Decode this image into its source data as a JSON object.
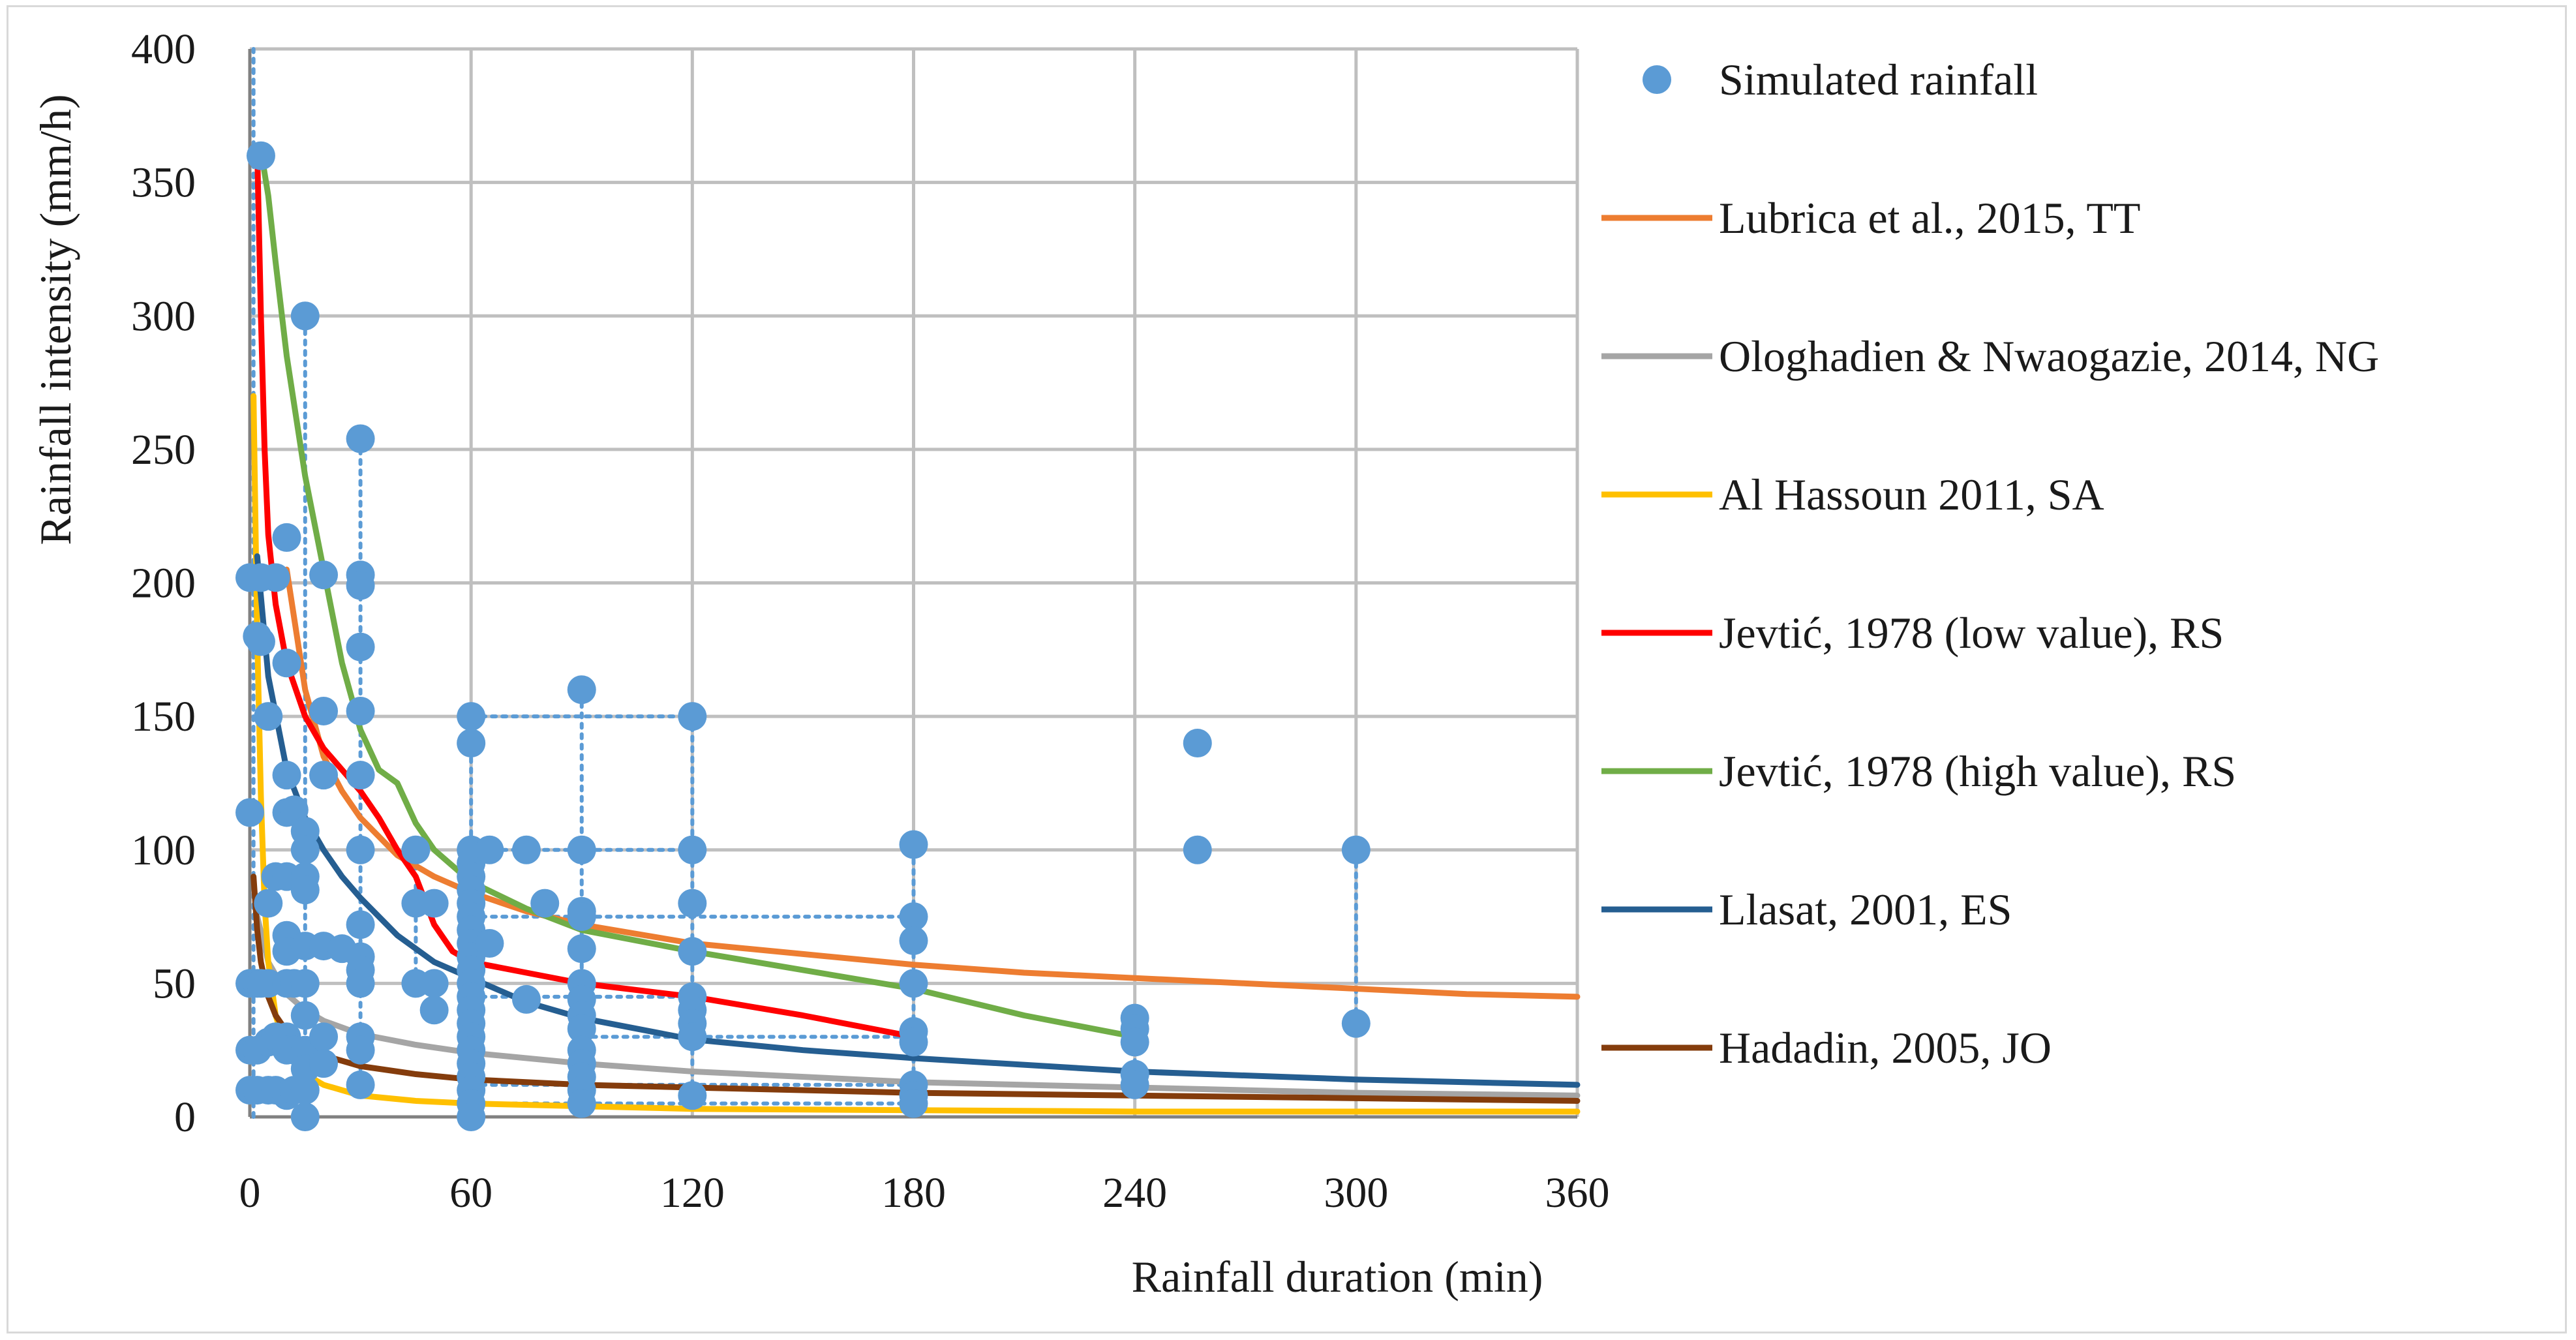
{
  "chart_data": {
    "type": "scatter",
    "title": "",
    "xlabel": "Rainfall duration (min)",
    "ylabel": "Rainfall intensity (mm/h)",
    "xlim": [
      0,
      360
    ],
    "ylim": [
      0,
      400
    ],
    "xticks": [
      0,
      60,
      120,
      180,
      240,
      300,
      360
    ],
    "yticks": [
      0,
      50,
      100,
      150,
      200,
      250,
      300,
      350,
      400
    ],
    "grid": true,
    "legend_position": "right",
    "colors": {
      "simulated": "#5b9bd5",
      "lubrica": "#ed7d31",
      "ologhadien": "#a5a5a5",
      "alhassoun": "#ffc000",
      "jevtic_low": "#ff0000",
      "jevtic_high": "#70ad47",
      "llasat": "#255e91",
      "hadadin": "#843c0c",
      "grid": "#bfbfbf",
      "axis": "#808080"
    },
    "scatter_series": {
      "name": "Simulated rainfall",
      "points": [
        [
          0,
          114
        ],
        [
          0,
          202
        ],
        [
          0,
          50
        ],
        [
          0,
          25
        ],
        [
          0,
          10
        ],
        [
          2,
          180
        ],
        [
          2,
          50
        ],
        [
          2,
          25
        ],
        [
          2,
          10
        ],
        [
          3,
          360
        ],
        [
          3,
          178
        ],
        [
          3,
          202
        ],
        [
          3,
          50
        ],
        [
          5,
          150
        ],
        [
          5,
          80
        ],
        [
          5,
          50
        ],
        [
          5,
          28
        ],
        [
          5,
          10
        ],
        [
          7,
          202
        ],
        [
          7,
          90
        ],
        [
          7,
          30
        ],
        [
          7,
          10
        ],
        [
          10,
          217
        ],
        [
          10,
          170
        ],
        [
          10,
          128
        ],
        [
          10,
          114
        ],
        [
          10,
          90
        ],
        [
          10,
          68
        ],
        [
          10,
          62
        ],
        [
          10,
          50
        ],
        [
          10,
          30
        ],
        [
          10,
          25
        ],
        [
          10,
          8
        ],
        [
          12,
          115
        ],
        [
          12,
          50
        ],
        [
          12,
          25
        ],
        [
          12,
          10
        ],
        [
          15,
          300
        ],
        [
          15,
          107
        ],
        [
          15,
          100
        ],
        [
          15,
          90
        ],
        [
          15,
          85
        ],
        [
          15,
          64
        ],
        [
          15,
          50
        ],
        [
          15,
          38
        ],
        [
          15,
          25
        ],
        [
          15,
          18
        ],
        [
          15,
          10
        ],
        [
          15,
          0
        ],
        [
          20,
          203
        ],
        [
          20,
          152
        ],
        [
          20,
          128
        ],
        [
          20,
          64
        ],
        [
          20,
          30
        ],
        [
          20,
          20
        ],
        [
          25,
          63
        ],
        [
          30,
          254
        ],
        [
          30,
          203
        ],
        [
          30,
          199
        ],
        [
          30,
          176
        ],
        [
          30,
          152
        ],
        [
          30,
          128
        ],
        [
          30,
          100
        ],
        [
          30,
          72
        ],
        [
          30,
          60
        ],
        [
          30,
          55
        ],
        [
          30,
          50
        ],
        [
          30,
          30
        ],
        [
          30,
          25
        ],
        [
          30,
          12
        ],
        [
          45,
          100
        ],
        [
          45,
          80
        ],
        [
          45,
          50
        ],
        [
          50,
          80
        ],
        [
          50,
          50
        ],
        [
          50,
          40
        ],
        [
          60,
          150
        ],
        [
          60,
          140
        ],
        [
          60,
          100
        ],
        [
          60,
          95
        ],
        [
          60,
          90
        ],
        [
          60,
          85
        ],
        [
          60,
          80
        ],
        [
          60,
          75
        ],
        [
          60,
          70
        ],
        [
          60,
          65
        ],
        [
          60,
          60
        ],
        [
          60,
          55
        ],
        [
          60,
          50
        ],
        [
          60,
          45
        ],
        [
          60,
          40
        ],
        [
          60,
          35
        ],
        [
          60,
          30
        ],
        [
          60,
          25
        ],
        [
          60,
          20
        ],
        [
          60,
          15
        ],
        [
          60,
          10
        ],
        [
          60,
          5
        ],
        [
          60,
          0
        ],
        [
          65,
          100
        ],
        [
          65,
          65
        ],
        [
          75,
          100
        ],
        [
          75,
          44
        ],
        [
          80,
          80
        ],
        [
          90,
          160
        ],
        [
          90,
          100
        ],
        [
          90,
          77
        ],
        [
          90,
          75
        ],
        [
          90,
          63
        ],
        [
          90,
          50
        ],
        [
          90,
          44
        ],
        [
          90,
          38
        ],
        [
          90,
          33
        ],
        [
          90,
          25
        ],
        [
          90,
          20
        ],
        [
          90,
          15
        ],
        [
          90,
          10
        ],
        [
          90,
          5
        ],
        [
          120,
          150
        ],
        [
          120,
          100
        ],
        [
          120,
          80
        ],
        [
          120,
          62
        ],
        [
          120,
          45
        ],
        [
          120,
          40
        ],
        [
          120,
          35
        ],
        [
          120,
          30
        ],
        [
          120,
          8
        ],
        [
          180,
          102
        ],
        [
          180,
          75
        ],
        [
          180,
          66
        ],
        [
          180,
          50
        ],
        [
          180,
          32
        ],
        [
          180,
          28
        ],
        [
          180,
          12
        ],
        [
          180,
          8
        ],
        [
          180,
          5
        ],
        [
          240,
          37
        ],
        [
          240,
          33
        ],
        [
          240,
          28
        ],
        [
          240,
          16
        ],
        [
          240,
          12
        ],
        [
          257,
          140
        ],
        [
          257,
          100
        ],
        [
          300,
          100
        ],
        [
          300,
          35
        ]
      ],
      "dotted_links": {
        "vertical": [
          [
            [
              1,
              0
            ],
            [
              1,
              400
            ]
          ],
          [
            [
              15,
              0
            ],
            [
              15,
              300
            ]
          ],
          [
            [
              30,
              10
            ],
            [
              30,
              254
            ]
          ],
          [
            [
              45,
              50
            ],
            [
              45,
              100
            ]
          ],
          [
            [
              60,
              0
            ],
            [
              60,
              150
            ]
          ],
          [
            [
              90,
              5
            ],
            [
              90,
              160
            ]
          ],
          [
            [
              120,
              8
            ],
            [
              120,
              150
            ]
          ],
          [
            [
              180,
              5
            ],
            [
              180,
              102
            ]
          ],
          [
            [
              240,
              12
            ],
            [
              240,
              37
            ]
          ],
          [
            [
              300,
              35
            ],
            [
              300,
              100
            ]
          ]
        ],
        "horizontal": [
          [
            [
              60,
              150
            ],
            [
              120,
              150
            ]
          ],
          [
            [
              60,
              100
            ],
            [
              120,
              100
            ]
          ],
          [
            [
              60,
              75
            ],
            [
              180,
              75
            ]
          ],
          [
            [
              60,
              45
            ],
            [
              120,
              45
            ]
          ],
          [
            [
              90,
              30
            ],
            [
              180,
              30
            ]
          ],
          [
            [
              60,
              12
            ],
            [
              180,
              12
            ]
          ],
          [
            [
              60,
              5
            ],
            [
              180,
              5
            ]
          ]
        ]
      }
    },
    "line_series": [
      {
        "name": "Lubrica et al., 2015, TT",
        "color_key": "lubrica",
        "x": [
          10,
          15,
          20,
          25,
          30,
          40,
          50,
          60,
          75,
          90,
          120,
          150,
          180,
          210,
          240,
          270,
          300,
          330,
          360
        ],
        "y": [
          205,
          160,
          135,
          122,
          112,
          98,
          90,
          84,
          77,
          72,
          65,
          61,
          57,
          54,
          52,
          50,
          48,
          46,
          45
        ]
      },
      {
        "name": "Ologhadien & Nwaogazie, 2014, NG",
        "color_key": "ologhadien",
        "x": [
          2,
          5,
          10,
          15,
          20,
          30,
          45,
          60,
          90,
          120,
          180,
          240,
          300,
          360
        ],
        "y": [
          75,
          58,
          46,
          40,
          36,
          31,
          27,
          24,
          20,
          17,
          13,
          11,
          9,
          8
        ]
      },
      {
        "name": "Al Hassoun 2011, SA",
        "color_key": "alhassoun",
        "x": [
          1,
          2,
          3,
          4,
          5,
          7,
          10,
          15,
          20,
          30,
          45,
          60,
          90,
          120,
          180,
          240,
          300,
          360
        ],
        "y": [
          270,
          180,
          120,
          80,
          58,
          38,
          25,
          16,
          12,
          8,
          6,
          5,
          4,
          3,
          2.5,
          2,
          2,
          2
        ]
      },
      {
        "name": "Jevtić, 1978 (low value), RS",
        "color_key": "jevtic_low",
        "x": [
          2,
          3,
          4,
          5,
          7,
          10,
          15,
          20,
          25,
          30,
          35,
          40,
          45,
          50,
          55,
          60,
          75,
          90,
          120,
          150,
          180
        ],
        "y": [
          362,
          300,
          250,
          218,
          192,
          170,
          150,
          138,
          130,
          122,
          112,
          100,
          90,
          72,
          62,
          58,
          54,
          50,
          45,
          38,
          30
        ]
      },
      {
        "name": "Jevtić, 1978 (high value), RS",
        "color_key": "jevtic_high",
        "x": [
          3,
          5,
          7,
          10,
          15,
          20,
          25,
          30,
          35,
          40,
          45,
          50,
          60,
          75,
          90,
          120,
          150,
          180,
          210,
          240
        ],
        "y": [
          362,
          345,
          320,
          285,
          240,
          205,
          170,
          145,
          130,
          125,
          110,
          100,
          88,
          78,
          70,
          62,
          55,
          48,
          38,
          30
        ]
      },
      {
        "name": "Llasat, 2001, ES",
        "color_key": "llasat",
        "x": [
          2,
          5,
          10,
          15,
          20,
          25,
          30,
          40,
          50,
          60,
          75,
          90,
          120,
          150,
          180,
          240,
          300,
          360
        ],
        "y": [
          210,
          165,
          130,
          112,
          100,
          90,
          82,
          68,
          58,
          52,
          43,
          37,
          29,
          25,
          22,
          17,
          14,
          12
        ]
      },
      {
        "name": "Hadadin, 2005, JO",
        "color_key": "hadadin",
        "x": [
          1,
          2,
          3,
          5,
          7,
          10,
          15,
          20,
          30,
          45,
          60,
          90,
          120,
          180,
          240,
          300,
          360
        ],
        "y": [
          90,
          70,
          58,
          45,
          38,
          32,
          26,
          23,
          19,
          16,
          14,
          12,
          11,
          9,
          8,
          7,
          6
        ]
      }
    ]
  }
}
